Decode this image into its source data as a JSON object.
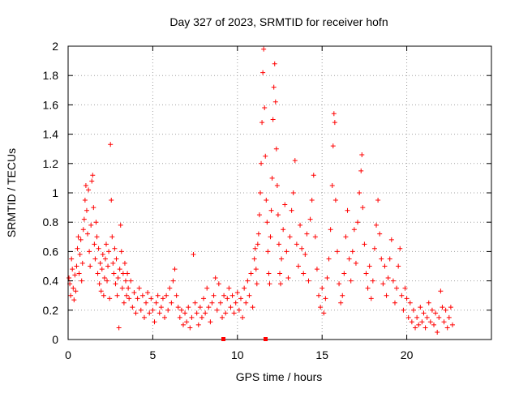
{
  "chart_data": {
    "type": "scatter",
    "title": "Day 327 of 2023, SRMTID for receiver hofn",
    "xlabel": "GPS time / hours",
    "ylabel": "SRMTID / TECUs",
    "xlim": [
      0,
      25
    ],
    "ylim": [
      0,
      2
    ],
    "xticks": [
      0,
      5,
      10,
      15,
      20
    ],
    "xtick_labels": [
      "0",
      "5",
      "10",
      "15",
      "20"
    ],
    "yticks": [
      0,
      0.2,
      0.4,
      0.6,
      0.8,
      1,
      1.2,
      1.4,
      1.6,
      1.8,
      2
    ],
    "ytick_labels": [
      "0",
      "0.2",
      "0.4",
      "0.6",
      "0.8",
      "1",
      "1.2",
      "1.4",
      "1.6",
      "1.8",
      "2"
    ],
    "grid": true,
    "marker": "+",
    "marker_color": "#ff0000",
    "series": [
      {
        "name": "SRMTID",
        "points": [
          [
            0.05,
            0.42
          ],
          [
            0.1,
            0.38
          ],
          [
            0.15,
            0.3
          ],
          [
            0.2,
            0.55
          ],
          [
            0.25,
            0.48
          ],
          [
            0.3,
            0.35
          ],
          [
            0.35,
            0.27
          ],
          [
            0.4,
            0.44
          ],
          [
            0.45,
            0.33
          ],
          [
            0.5,
            0.5
          ],
          [
            0.55,
            0.62
          ],
          [
            0.6,
            0.7
          ],
          [
            0.65,
            0.45
          ],
          [
            0.7,
            0.58
          ],
          [
            0.75,
            0.68
          ],
          [
            0.8,
            0.4
          ],
          [
            0.85,
            0.52
          ],
          [
            0.9,
            0.75
          ],
          [
            0.95,
            0.82
          ],
          [
            1.0,
            0.95
          ],
          [
            1.05,
            1.05
          ],
          [
            1.1,
            0.88
          ],
          [
            1.15,
            0.72
          ],
          [
            1.2,
            1.02
          ],
          [
            1.25,
            0.6
          ],
          [
            1.3,
            0.5
          ],
          [
            1.35,
            0.78
          ],
          [
            1.4,
            1.08
          ],
          [
            1.45,
            1.12
          ],
          [
            1.5,
            0.9
          ],
          [
            1.55,
            0.65
          ],
          [
            1.6,
            0.55
          ],
          [
            1.65,
            0.8
          ],
          [
            1.7,
            0.7
          ],
          [
            1.75,
            0.45
          ],
          [
            1.8,
            0.62
          ],
          [
            1.85,
            0.38
          ],
          [
            1.9,
            0.52
          ],
          [
            1.95,
            0.33
          ],
          [
            2.0,
            0.48
          ],
          [
            2.05,
            0.58
          ],
          [
            2.1,
            0.3
          ],
          [
            2.15,
            0.42
          ],
          [
            2.2,
            0.55
          ],
          [
            2.25,
            0.65
          ],
          [
            2.3,
            0.4
          ],
          [
            2.35,
            0.5
          ],
          [
            2.4,
            0.6
          ],
          [
            2.45,
            0.28
          ],
          [
            2.5,
            1.33
          ],
          [
            2.55,
            0.95
          ],
          [
            2.6,
            0.7
          ],
          [
            2.65,
            0.52
          ],
          [
            2.7,
            0.45
          ],
          [
            2.75,
            0.62
          ],
          [
            2.8,
            0.38
          ],
          [
            2.85,
            0.55
          ],
          [
            2.9,
            0.3
          ],
          [
            2.95,
            0.42
          ],
          [
            3.0,
            0.08
          ],
          [
            3.05,
            0.48
          ],
          [
            3.1,
            0.78
          ],
          [
            3.15,
            0.6
          ],
          [
            3.2,
            0.35
          ],
          [
            3.25,
            0.45
          ],
          [
            3.3,
            0.25
          ],
          [
            3.35,
            0.52
          ],
          [
            3.4,
            0.4
          ],
          [
            3.45,
            0.3
          ],
          [
            3.5,
            0.45
          ],
          [
            3.55,
            0.35
          ],
          [
            3.6,
            0.28
          ],
          [
            3.7,
            0.4
          ],
          [
            3.8,
            0.22
          ],
          [
            3.9,
            0.32
          ],
          [
            4.0,
            0.18
          ],
          [
            4.1,
            0.28
          ],
          [
            4.2,
            0.35
          ],
          [
            4.3,
            0.2
          ],
          [
            4.4,
            0.3
          ],
          [
            4.5,
            0.15
          ],
          [
            4.6,
            0.25
          ],
          [
            4.7,
            0.32
          ],
          [
            4.8,
            0.18
          ],
          [
            4.9,
            0.28
          ],
          [
            5.0,
            0.2
          ],
          [
            5.1,
            0.12
          ],
          [
            5.2,
            0.25
          ],
          [
            5.3,
            0.3
          ],
          [
            5.4,
            0.18
          ],
          [
            5.5,
            0.22
          ],
          [
            5.6,
            0.28
          ],
          [
            5.7,
            0.15
          ],
          [
            5.8,
            0.3
          ],
          [
            5.9,
            0.2
          ],
          [
            6.0,
            0.35
          ],
          [
            6.1,
            0.25
          ],
          [
            6.2,
            0.4
          ],
          [
            6.3,
            0.48
          ],
          [
            6.4,
            0.3
          ],
          [
            6.5,
            0.22
          ],
          [
            6.6,
            0.15
          ],
          [
            6.7,
            0.2
          ],
          [
            6.8,
            0.1
          ],
          [
            6.9,
            0.18
          ],
          [
            7.0,
            0.12
          ],
          [
            7.1,
            0.22
          ],
          [
            7.2,
            0.08
          ],
          [
            7.3,
            0.15
          ],
          [
            7.4,
            0.58
          ],
          [
            7.5,
            0.25
          ],
          [
            7.6,
            0.18
          ],
          [
            7.7,
            0.1
          ],
          [
            7.8,
            0.22
          ],
          [
            7.9,
            0.15
          ],
          [
            8.0,
            0.28
          ],
          [
            8.1,
            0.18
          ],
          [
            8.2,
            0.35
          ],
          [
            8.3,
            0.22
          ],
          [
            8.4,
            0.12
          ],
          [
            8.5,
            0.25
          ],
          [
            8.6,
            0.3
          ],
          [
            8.7,
            0.42
          ],
          [
            8.8,
            0.2
          ],
          [
            8.9,
            0.38
          ],
          [
            9.0,
            0.25
          ],
          [
            9.1,
            0.15
          ],
          [
            9.2,
            0.3
          ],
          [
            9.3,
            0.18
          ],
          [
            9.4,
            0.28
          ],
          [
            9.5,
            0.35
          ],
          [
            9.6,
            0.22
          ],
          [
            9.7,
            0.3
          ],
          [
            9.8,
            0.18
          ],
          [
            9.9,
            0.25
          ],
          [
            10.0,
            0.32
          ],
          [
            10.1,
            0.2
          ],
          [
            10.2,
            0.28
          ],
          [
            10.3,
            0.15
          ],
          [
            10.4,
            0.35
          ],
          [
            10.5,
            0.25
          ],
          [
            10.6,
            0.4
          ],
          [
            10.7,
            0.3
          ],
          [
            10.8,
            0.45
          ],
          [
            10.9,
            0.22
          ],
          [
            11.0,
            0.55
          ],
          [
            11.05,
            0.62
          ],
          [
            11.1,
            0.48
          ],
          [
            11.15,
            0.38
          ],
          [
            11.2,
            0.65
          ],
          [
            11.25,
            0.72
          ],
          [
            11.3,
            0.85
          ],
          [
            11.35,
            1.0
          ],
          [
            11.4,
            1.2
          ],
          [
            11.45,
            1.48
          ],
          [
            11.5,
            1.82
          ],
          [
            11.55,
            1.98
          ],
          [
            11.6,
            1.58
          ],
          [
            11.65,
            1.25
          ],
          [
            11.7,
            0.95
          ],
          [
            11.75,
            0.8
          ],
          [
            11.8,
            0.6
          ],
          [
            11.85,
            0.45
          ],
          [
            11.9,
            0.38
          ],
          [
            11.95,
            0.7
          ],
          [
            12.0,
            0.88
          ],
          [
            12.05,
            1.1
          ],
          [
            12.1,
            1.5
          ],
          [
            12.15,
            1.72
          ],
          [
            12.2,
            1.88
          ],
          [
            12.25,
            1.62
          ],
          [
            12.3,
            1.3
          ],
          [
            12.35,
            1.05
          ],
          [
            12.4,
            0.85
          ],
          [
            12.45,
            0.65
          ],
          [
            12.5,
            0.45
          ],
          [
            12.55,
            0.38
          ],
          [
            12.6,
            0.55
          ],
          [
            12.7,
            0.75
          ],
          [
            12.8,
            0.92
          ],
          [
            12.9,
            0.6
          ],
          [
            13.0,
            0.42
          ],
          [
            13.1,
            0.7
          ],
          [
            13.2,
            0.88
          ],
          [
            13.3,
            1.0
          ],
          [
            13.4,
            1.22
          ],
          [
            13.5,
            0.65
          ],
          [
            13.6,
            0.5
          ],
          [
            13.7,
            0.78
          ],
          [
            13.8,
            0.62
          ],
          [
            13.9,
            0.45
          ],
          [
            14.0,
            0.58
          ],
          [
            14.1,
            0.72
          ],
          [
            14.2,
            0.4
          ],
          [
            14.3,
            0.82
          ],
          [
            14.4,
            0.95
          ],
          [
            14.5,
            1.12
          ],
          [
            14.6,
            0.7
          ],
          [
            14.7,
            0.48
          ],
          [
            14.8,
            0.3
          ],
          [
            14.9,
            0.22
          ],
          [
            15.0,
            0.35
          ],
          [
            15.1,
            0.18
          ],
          [
            15.2,
            0.28
          ],
          [
            15.3,
            0.42
          ],
          [
            15.4,
            0.55
          ],
          [
            15.5,
            0.75
          ],
          [
            15.6,
            1.05
          ],
          [
            15.65,
            1.32
          ],
          [
            15.7,
            1.54
          ],
          [
            15.75,
            1.48
          ],
          [
            15.8,
            0.95
          ],
          [
            15.9,
            0.6
          ],
          [
            16.0,
            0.38
          ],
          [
            16.1,
            0.25
          ],
          [
            16.2,
            0.3
          ],
          [
            16.3,
            0.45
          ],
          [
            16.4,
            0.7
          ],
          [
            16.5,
            0.88
          ],
          [
            16.6,
            0.55
          ],
          [
            16.7,
            0.4
          ],
          [
            16.8,
            0.6
          ],
          [
            16.9,
            0.75
          ],
          [
            17.0,
            0.52
          ],
          [
            17.1,
            0.8
          ],
          [
            17.2,
            1.0
          ],
          [
            17.3,
            1.15
          ],
          [
            17.35,
            1.26
          ],
          [
            17.4,
            0.9
          ],
          [
            17.5,
            0.65
          ],
          [
            17.6,
            0.45
          ],
          [
            17.7,
            0.35
          ],
          [
            17.8,
            0.5
          ],
          [
            17.9,
            0.28
          ],
          [
            18.0,
            0.4
          ],
          [
            18.1,
            0.62
          ],
          [
            18.2,
            0.78
          ],
          [
            18.3,
            0.95
          ],
          [
            18.4,
            0.72
          ],
          [
            18.5,
            0.55
          ],
          [
            18.6,
            0.38
          ],
          [
            18.7,
            0.5
          ],
          [
            18.8,
            0.3
          ],
          [
            18.9,
            0.42
          ],
          [
            19.0,
            0.55
          ],
          [
            19.1,
            0.68
          ],
          [
            19.2,
            0.4
          ],
          [
            19.3,
            0.25
          ],
          [
            19.4,
            0.35
          ],
          [
            19.5,
            0.5
          ],
          [
            19.6,
            0.62
          ],
          [
            19.7,
            0.3
          ],
          [
            19.8,
            0.2
          ],
          [
            19.9,
            0.35
          ],
          [
            20.0,
            0.28
          ],
          [
            20.1,
            0.15
          ],
          [
            20.2,
            0.25
          ],
          [
            20.3,
            0.12
          ],
          [
            20.4,
            0.2
          ],
          [
            20.5,
            0.08
          ],
          [
            20.6,
            0.15
          ],
          [
            20.7,
            0.1
          ],
          [
            20.8,
            0.22
          ],
          [
            20.9,
            0.12
          ],
          [
            21.0,
            0.18
          ],
          [
            21.1,
            0.08
          ],
          [
            21.2,
            0.15
          ],
          [
            21.3,
            0.25
          ],
          [
            21.4,
            0.12
          ],
          [
            21.5,
            0.2
          ],
          [
            21.6,
            0.1
          ],
          [
            21.7,
            0.18
          ],
          [
            21.8,
            0.05
          ],
          [
            21.9,
            0.15
          ],
          [
            22.0,
            0.33
          ],
          [
            22.1,
            0.22
          ],
          [
            22.2,
            0.12
          ],
          [
            22.3,
            0.2
          ],
          [
            22.4,
            0.08
          ],
          [
            22.5,
            0.15
          ],
          [
            22.6,
            0.22
          ],
          [
            22.7,
            0.1
          ]
        ]
      }
    ]
  }
}
